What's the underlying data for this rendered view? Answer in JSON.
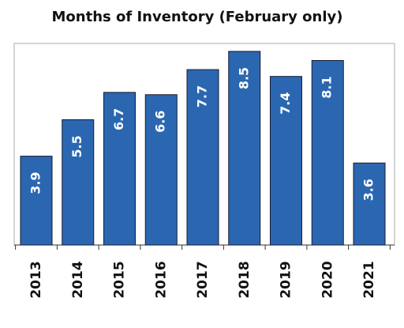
{
  "chart_data": {
    "type": "bar",
    "title": "Months of Inventory (February only)",
    "categories": [
      "2013",
      "2014",
      "2015",
      "2016",
      "2017",
      "2018",
      "2019",
      "2020",
      "2021"
    ],
    "values": [
      3.9,
      5.5,
      6.7,
      6.6,
      7.7,
      8.5,
      7.4,
      8.1,
      3.6
    ],
    "color": "#2b67b1"
  }
}
